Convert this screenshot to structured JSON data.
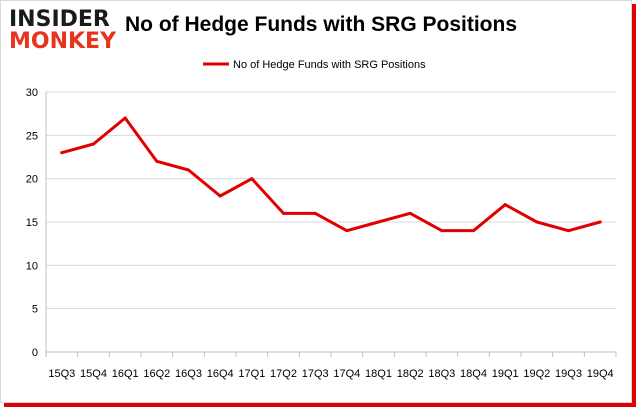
{
  "branding": {
    "logo_line1": "INSIDER",
    "logo_line2": "MONKEY"
  },
  "colors": {
    "series": "#e00000",
    "logo_red": "#e8341c",
    "axis": "#bfbfbf",
    "grid": "#d9d9d9"
  },
  "chart_data": {
    "type": "line",
    "title": "No of Hedge Funds with SRG Positions",
    "xlabel": "",
    "ylabel": "",
    "categories": [
      "15Q3",
      "15Q4",
      "16Q1",
      "16Q2",
      "16Q3",
      "16Q4",
      "17Q1",
      "17Q2",
      "17Q3",
      "17Q4",
      "18Q1",
      "18Q2",
      "18Q3",
      "18Q4",
      "19Q1",
      "19Q2",
      "19Q3",
      "19Q4"
    ],
    "series": [
      {
        "name": "No of Hedge Funds with SRG Positions",
        "values": [
          23,
          24,
          27,
          22,
          21,
          18,
          20,
          16,
          16,
          14,
          15,
          16,
          14,
          14,
          17,
          15,
          14,
          15
        ]
      }
    ],
    "ylim": [
      0,
      30
    ],
    "yticks": [
      0,
      5,
      10,
      15,
      20,
      25,
      30
    ],
    "grid": true,
    "legend": "top-center"
  }
}
